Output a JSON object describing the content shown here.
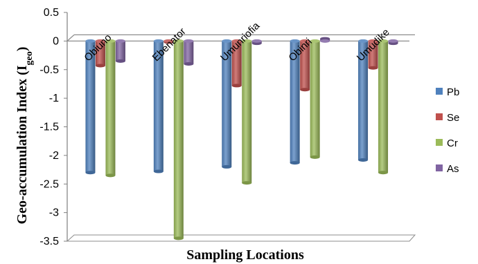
{
  "chart_data": {
    "type": "bar",
    "title": "",
    "xlabel": "Sampling Locations",
    "ylabel_main": "Geo-accumulation Index (I",
    "ylabel_sub": "geo",
    "ylabel_close": ")",
    "ylim": [
      -3.5,
      0.5
    ],
    "yticks": [
      0.5,
      0,
      -0.5,
      -1,
      -1.5,
      -2,
      -2.5,
      -3,
      -3.5
    ],
    "ytick_labels": [
      "0.5",
      "0",
      "-0.5",
      "-1",
      "-1.5",
      "-2",
      "-2.5",
      "-3",
      "-3.5"
    ],
    "legend_position": "right",
    "grid": false,
    "categories": [
      "Obiuno",
      "Ebenator",
      "Umunriofia",
      "Obinri",
      "Umudike"
    ],
    "series": [
      {
        "name": "Pb",
        "color": "#4f81bd",
        "values": [
          -2.3,
          -2.28,
          -2.2,
          -2.13,
          -2.08
        ]
      },
      {
        "name": "Se",
        "color": "#c0504d",
        "values": [
          -0.43,
          -0.02,
          -0.78,
          -0.85,
          -0.47
        ]
      },
      {
        "name": "Cr",
        "color": "#9bbb59",
        "values": [
          -2.35,
          -3.45,
          -2.48,
          -2.03,
          -2.3
        ]
      },
      {
        "name": "As",
        "color": "#8064a2",
        "values": [
          -0.35,
          -0.4,
          -0.04,
          0.04,
          -0.04
        ]
      }
    ]
  }
}
